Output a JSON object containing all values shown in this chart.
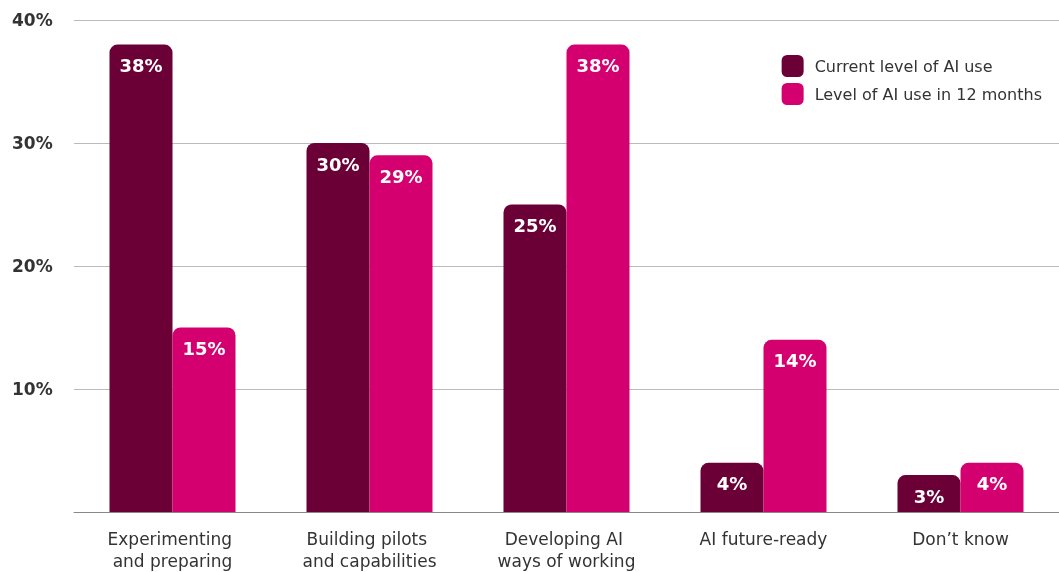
{
  "chart_data": {
    "type": "bar",
    "categories": [
      "Experimenting and preparing",
      "Building pilots and capabilities",
      "Developing AI ways of working",
      "AI future-ready",
      "Don’t know"
    ],
    "series": [
      {
        "name": "Current level of AI use",
        "color": "#6b0036",
        "values": [
          38,
          30,
          25,
          4,
          3
        ],
        "value_labels": [
          "38%",
          "30%",
          "25%",
          "4%",
          "3%"
        ]
      },
      {
        "name": "Level of AI use in 12 months",
        "color": "#d4006f",
        "values": [
          15,
          29,
          38,
          14,
          4
        ],
        "value_labels": [
          "15%",
          "29%",
          "38%",
          "14%",
          "4%"
        ]
      }
    ],
    "ylim": [
      0,
      40
    ],
    "yticks": [
      {
        "value": 0,
        "label": null
      },
      {
        "value": 10,
        "label": "10%"
      },
      {
        "value": 20,
        "label": "20%"
      },
      {
        "value": 30,
        "label": "30%"
      },
      {
        "value": 40,
        "label": "40%"
      }
    ],
    "grid": "y",
    "legend": "top right"
  }
}
